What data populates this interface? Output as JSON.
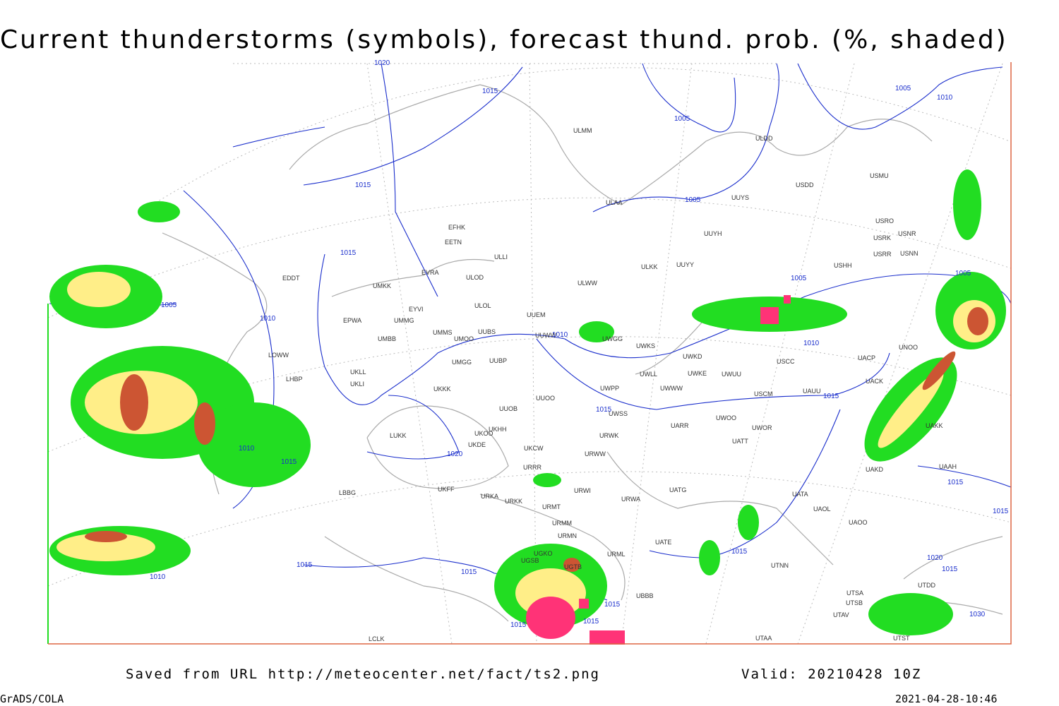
{
  "header": {
    "title": "Current thunderstorms (symbols), forecast thund. prob. (%, shaded)"
  },
  "map": {
    "stations": [
      "ULMM",
      "ULDD",
      "USDD",
      "USMU",
      "ULAA",
      "UUYS",
      "USRO",
      "USRK",
      "USNR",
      "USRR",
      "USNN",
      "UUYH",
      "ULKK",
      "UUYY",
      "USHH",
      "EFHK",
      "EETN",
      "ULLI",
      "EVRA",
      "ULOD",
      "UMKK",
      "ULWW",
      "EDDT",
      "EYVI",
      "ULOL",
      "UUEM",
      "EPWA",
      "UMMG",
      "UMMS",
      "UMOO",
      "UUBS",
      "UUWW",
      "UWGG",
      "UWKS",
      "UMBB",
      "LOWW",
      "UKLL",
      "UUBP",
      "UMGG",
      "UWKD",
      "UWLL",
      "UWKE",
      "UWUU",
      "USCC",
      "UACP",
      "UNOO",
      "LHBP",
      "UKLI",
      "UKKK",
      "UWPP",
      "UWWW",
      "USCM",
      "UAUU",
      "UACK",
      "UUOO",
      "UUOB",
      "LUKK",
      "UKHH",
      "UWSS",
      "UARR",
      "UWOO",
      "UWOR",
      "UATT",
      "URWK",
      "UKDE",
      "UKOO",
      "UKCW",
      "URWW",
      "URRR",
      "UAKD",
      "UAKK",
      "UAAH",
      "UKFF",
      "LBBG",
      "URKA",
      "URKK",
      "URWI",
      "UATG",
      "URWA",
      "UATA",
      "UAOL",
      "URMT",
      "URMM",
      "URMN",
      "URML",
      "UATE",
      "UAOO",
      "UGKO",
      "UGSB",
      "UGTB",
      "UTNN",
      "UBBB",
      "UTAA",
      "UTSA",
      "UTSB",
      "UTAV",
      "UTST",
      "UTDD",
      "LCLK"
    ],
    "isobar_labels": [
      1020,
      1015,
      1005,
      1005,
      1010,
      1015,
      1005,
      1015,
      1005,
      1005,
      1005,
      1010,
      1010,
      1010,
      1015,
      1015,
      1010,
      1015,
      1020,
      1015,
      1015,
      1015,
      1020,
      1015,
      1015,
      1015,
      1010,
      1015,
      1015,
      1015,
      1030
    ]
  },
  "footer": {
    "source": "Saved from URL http://meteocenter.net/fact/ts2.png",
    "valid": "Valid: 20210428 10Z",
    "software": "GrADS/COLA",
    "timestamp": "2021-04-28-10:46"
  }
}
